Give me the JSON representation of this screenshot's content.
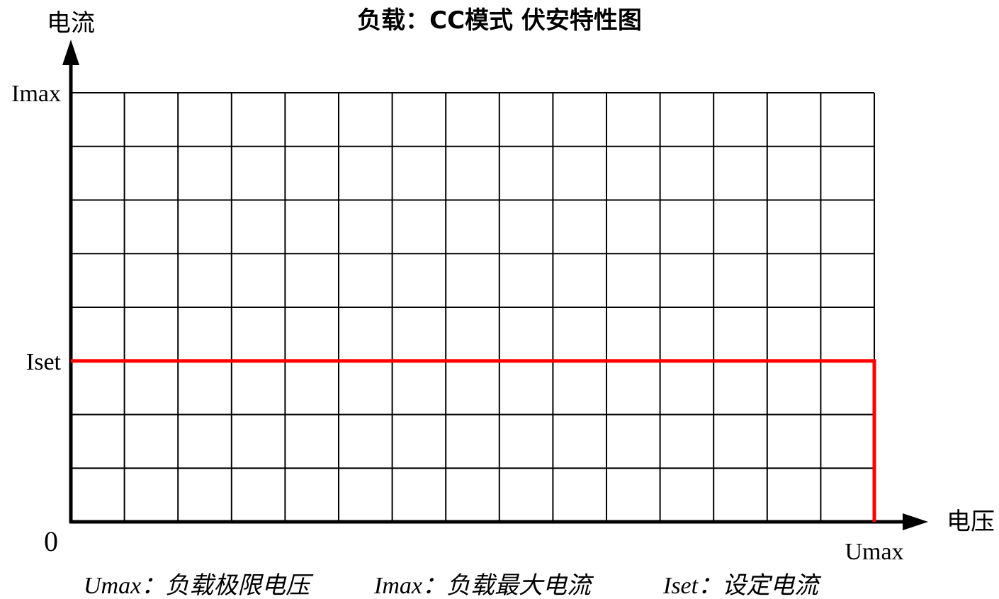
{
  "chart_data": {
    "type": "line",
    "title": "负载：CC模式 伏安特性图",
    "ylabel": "电流",
    "xlabel": "电压",
    "origin_label": "0",
    "grid": true,
    "x_grid_divisions": 15,
    "y_grid_divisions": 8,
    "xlim": [
      0,
      15
    ],
    "ylim": [
      0,
      8
    ],
    "y_ticks": [
      {
        "label": "Imax",
        "value": 8
      },
      {
        "label": "Iset",
        "value": 3
      }
    ],
    "x_ticks": [
      {
        "label": "Umax",
        "value": 15
      }
    ],
    "series": [
      {
        "color": "#ff0000",
        "points": [
          [
            0,
            3
          ],
          [
            15,
            3
          ],
          [
            15,
            0
          ]
        ]
      }
    ],
    "legend": [
      "Umax：负载极限电压",
      "Imax：负载最大电流",
      "Iset：设定电流"
    ],
    "legend_placement": "bottom"
  }
}
